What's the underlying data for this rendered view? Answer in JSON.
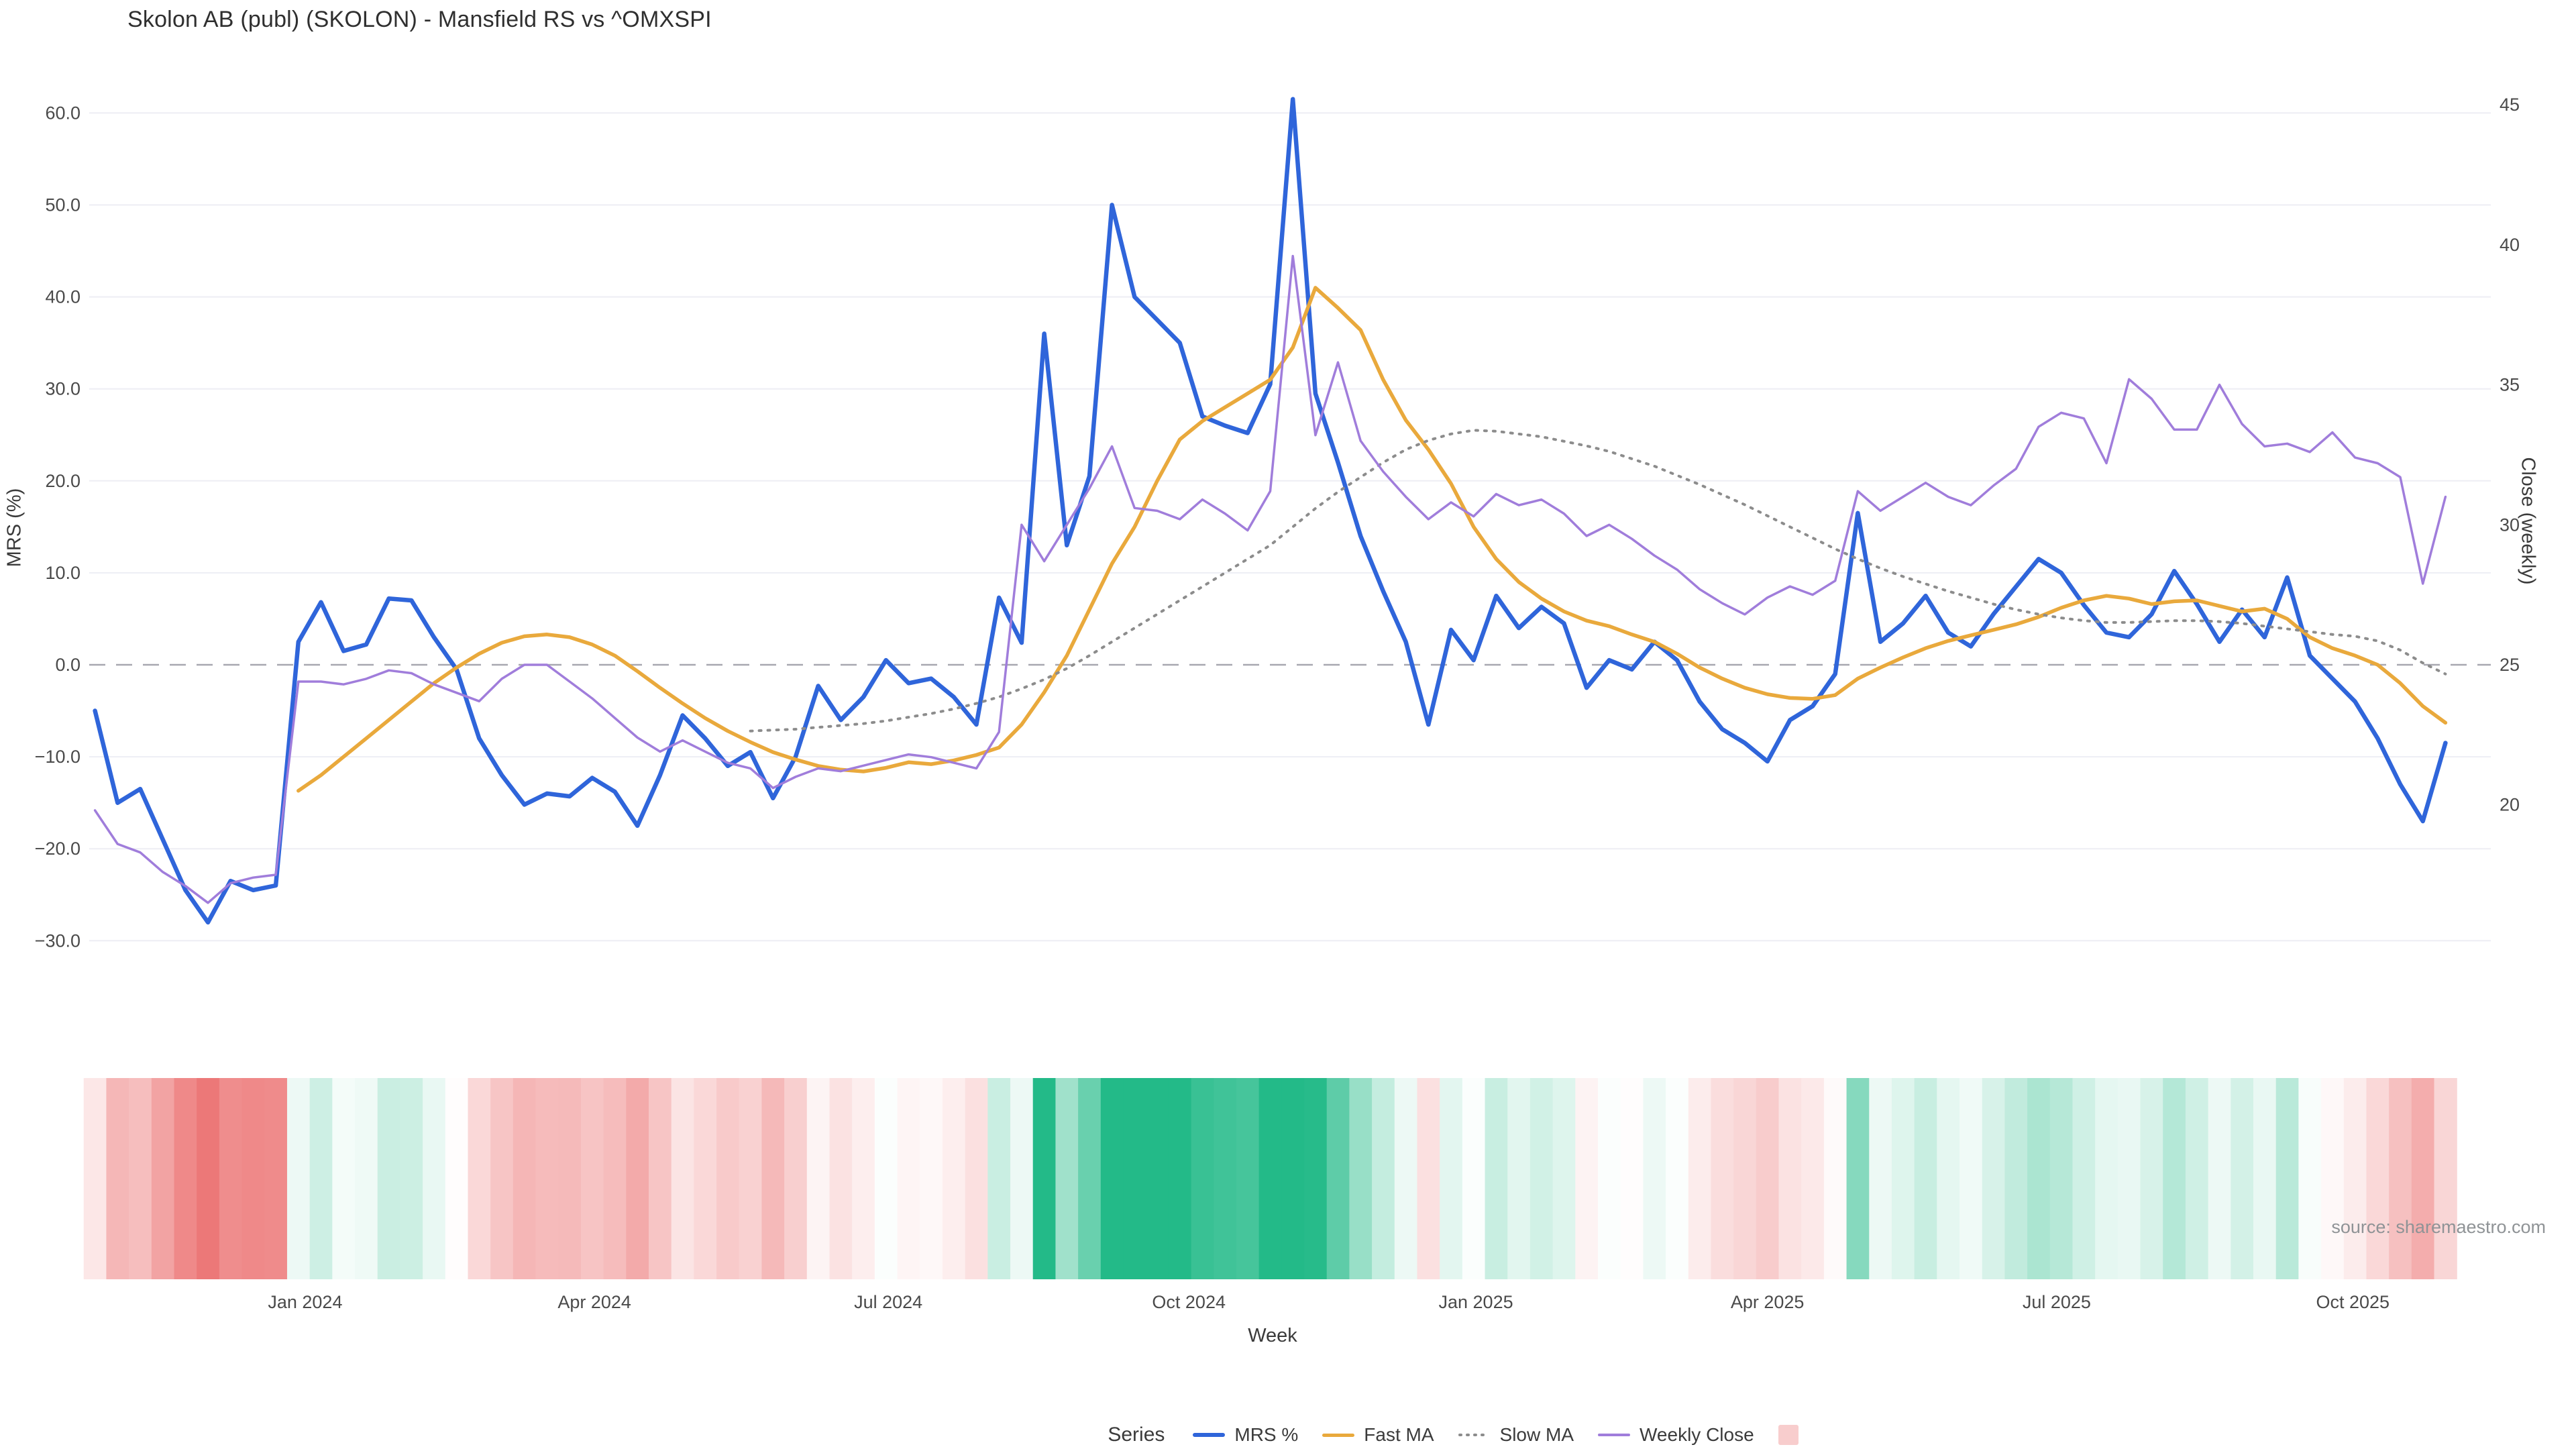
{
  "title": "Skolon AB (publ) (SKOLON) - Mansfield RS vs ^OMXSPI",
  "source_note": "source: sharemaestro.com",
  "axes": {
    "left": {
      "label": "MRS (%)",
      "tick_values": [
        60,
        50,
        40,
        30,
        20,
        10,
        0,
        -10,
        -20,
        -30
      ]
    },
    "right": {
      "label": "Close (weekly)",
      "tick_values": [
        45,
        40,
        35,
        30,
        25,
        20
      ]
    },
    "x": {
      "label": "Week",
      "ticks": [
        {
          "label": "Jan 2024",
          "week": 9.3
        },
        {
          "label": "Apr 2024",
          "week": 22.1
        },
        {
          "label": "Jul 2024",
          "week": 35.1
        },
        {
          "label": "Oct 2024",
          "week": 48.4
        },
        {
          "label": "Jan 2025",
          "week": 61.1
        },
        {
          "label": "Apr 2025",
          "week": 74.0
        },
        {
          "label": "Jul 2025",
          "week": 86.8
        },
        {
          "label": "Oct 2025",
          "week": 99.9
        }
      ]
    }
  },
  "legend": {
    "title": "Series",
    "items": [
      {
        "label": "MRS %",
        "color": "#2f65da",
        "style": "solid"
      },
      {
        "label": "Fast MA",
        "color": "#e9a93c",
        "style": "solid"
      },
      {
        "label": "Slow MA",
        "color": "#8c8c8c",
        "style": "dotted"
      },
      {
        "label": "Weekly Close",
        "color": "#a07ddb",
        "style": "solid"
      }
    ],
    "heatmap_swatch_color": "#f8cdcd"
  },
  "colors": {
    "grid": "#edeef4",
    "zero_line": "#a7a7b0",
    "tick_text": "#4a4a4a",
    "source_text": "#8f9396",
    "heatmap_positive": "#23ba88",
    "heatmap_negative": "#eb6e6e"
  },
  "chart_data": {
    "type": "line",
    "title": "Skolon AB (publ) (SKOLON) - Mansfield RS vs ^OMXSPI",
    "xlabel": "Week",
    "ylabel_left": "MRS (%)",
    "ylabel_right": "Close (weekly)",
    "n_points": 105,
    "x_start_week": "2023-11-06",
    "left_axis_range": [
      -30,
      60
    ],
    "right_axis_range": [
      20,
      45
    ],
    "grid": true,
    "legend_position": "bottom",
    "series": [
      {
        "name": "MRS %",
        "axis": "left",
        "color": "#2f65da",
        "width": 6.5,
        "style": "solid",
        "values": [
          -5,
          -15,
          -13.5,
          -19,
          -24.5,
          -28,
          -23.5,
          -24.5,
          -24,
          2.5,
          6.8,
          1.5,
          2.2,
          7.2,
          7,
          3,
          -0.5,
          -8,
          -12,
          -15.2,
          -14,
          -14.3,
          -12.3,
          -13.8,
          -17.5,
          -12,
          -5.5,
          -8,
          -11,
          -9.5,
          -14.5,
          -10,
          -2.3,
          -6,
          -3.5,
          0.5,
          -2,
          -1.5,
          -3.5,
          -6.5,
          7.3,
          2.4,
          36,
          13,
          20.5,
          50,
          40,
          37.5,
          35,
          27,
          26,
          25.2,
          30.5,
          61.5,
          29.5,
          22,
          14,
          8,
          2.5,
          -6.5,
          3.8,
          0.5,
          7.5,
          4,
          6.3,
          4.5,
          -2.5,
          0.5,
          -0.5,
          2.5,
          0.5,
          -4,
          -7,
          -8.5,
          -10.5,
          -6,
          -4.5,
          -1,
          16.5,
          2.5,
          4.5,
          7.5,
          3.5,
          2,
          5.5,
          8.5,
          11.5,
          10,
          6.5,
          3.5,
          3,
          5.5,
          10.2,
          6.6,
          2.5,
          6,
          3,
          9.5,
          1,
          -1.5,
          -4,
          -8,
          -13,
          -17,
          -8.5
        ]
      },
      {
        "name": "Fast MA",
        "axis": "left",
        "color": "#e9a93c",
        "width": 5.5,
        "style": "solid",
        "values": [
          null,
          null,
          null,
          null,
          null,
          null,
          null,
          null,
          null,
          -13.7,
          -12,
          -10,
          -8,
          -6,
          -4,
          -2,
          -0.3,
          1.2,
          2.4,
          3.1,
          3.3,
          3,
          2.2,
          1,
          -0.7,
          -2.5,
          -4.2,
          -5.8,
          -7.2,
          -8.4,
          -9.5,
          -10.3,
          -11,
          -11.4,
          -11.6,
          -11.2,
          -10.6,
          -10.8,
          -10.4,
          -9.8,
          -9,
          -6.5,
          -3,
          1,
          6,
          11,
          15,
          20,
          24.5,
          26.5,
          28,
          29.5,
          31,
          34.5,
          41,
          38.8,
          36.4,
          31,
          26.6,
          23.4,
          19.7,
          15,
          11.5,
          9,
          7.2,
          5.8,
          4.8,
          4.2,
          3.3,
          2.5,
          1.2,
          -0.3,
          -1.5,
          -2.5,
          -3.2,
          -3.6,
          -3.7,
          -3.3,
          -1.5,
          -0.3,
          0.8,
          1.8,
          2.6,
          3.2,
          3.8,
          4.4,
          5.2,
          6.2,
          7,
          7.5,
          7.2,
          6.6,
          6.9,
          7,
          6.4,
          5.8,
          6.1,
          5,
          3,
          1.8,
          1,
          0,
          -2,
          -4.5,
          -6.3
        ]
      },
      {
        "name": "Slow MA",
        "axis": "left",
        "color": "#8c8c8c",
        "width": 4,
        "style": "dotted",
        "values": [
          null,
          null,
          null,
          null,
          null,
          null,
          null,
          null,
          null,
          null,
          null,
          null,
          null,
          null,
          null,
          null,
          null,
          null,
          null,
          null,
          null,
          null,
          null,
          null,
          null,
          null,
          null,
          null,
          null,
          -7.2,
          -7.1,
          -7,
          -6.8,
          -6.6,
          -6.4,
          -6.1,
          -5.7,
          -5.3,
          -4.8,
          -4.2,
          -3.5,
          -2.6,
          -1.6,
          -0.4,
          1,
          2.5,
          4,
          5.5,
          7,
          8.5,
          10,
          11.5,
          13,
          15,
          17,
          18.8,
          20.4,
          22,
          23.4,
          24.4,
          25.1,
          25.5,
          25.4,
          25.1,
          24.8,
          24.3,
          23.8,
          23.2,
          22.4,
          21.6,
          20.6,
          19.6,
          18.5,
          17.4,
          16.2,
          15,
          13.8,
          12.6,
          11.5,
          10.5,
          9.6,
          8.8,
          8,
          7.3,
          6.6,
          6,
          5.5,
          5.1,
          4.8,
          4.6,
          4.6,
          4.7,
          4.8,
          4.8,
          4.7,
          4.5,
          4.2,
          3.9,
          3.6,
          3.3,
          3.1,
          2.6,
          1.6,
          0.2,
          -1
        ]
      },
      {
        "name": "Weekly Close",
        "axis": "right",
        "color": "#a07ddb",
        "width": 3.5,
        "style": "solid",
        "values": [
          19.8,
          18.6,
          18.3,
          17.6,
          17.1,
          16.5,
          17.2,
          17.4,
          17.5,
          24.4,
          24.4,
          24.3,
          24.5,
          24.8,
          24.7,
          24.3,
          24,
          23.7,
          24.5,
          25,
          25,
          24.4,
          23.8,
          23.1,
          22.4,
          21.9,
          22.3,
          21.9,
          21.5,
          21.3,
          20.6,
          21,
          21.3,
          21.2,
          21.4,
          21.6,
          21.8,
          21.7,
          21.5,
          21.3,
          22.6,
          30,
          28.7,
          30,
          31.3,
          32.8,
          30.6,
          30.5,
          30.2,
          30.9,
          30.4,
          29.8,
          31.2,
          39.6,
          33.2,
          35.8,
          33,
          31.9,
          31,
          30.2,
          30.8,
          30.3,
          31.1,
          30.7,
          30.9,
          30.4,
          29.6,
          30,
          29.5,
          28.9,
          28.4,
          27.7,
          27.2,
          26.8,
          27.4,
          27.8,
          27.5,
          28,
          31.2,
          30.5,
          31,
          31.5,
          31,
          30.7,
          31.4,
          32,
          33.5,
          34,
          33.8,
          32.2,
          35.2,
          34.5,
          33.4,
          33.4,
          35,
          33.6,
          32.8,
          32.9,
          32.6,
          33.3,
          32.4,
          32.2,
          31.7,
          27.9,
          31
        ]
      }
    ],
    "heatmap": {
      "based_on": "MRS %",
      "positive_color": "#23ba88",
      "negative_color": "#eb6e6e",
      "neutral_color": "#ffffff",
      "saturation_cap": 30
    }
  }
}
